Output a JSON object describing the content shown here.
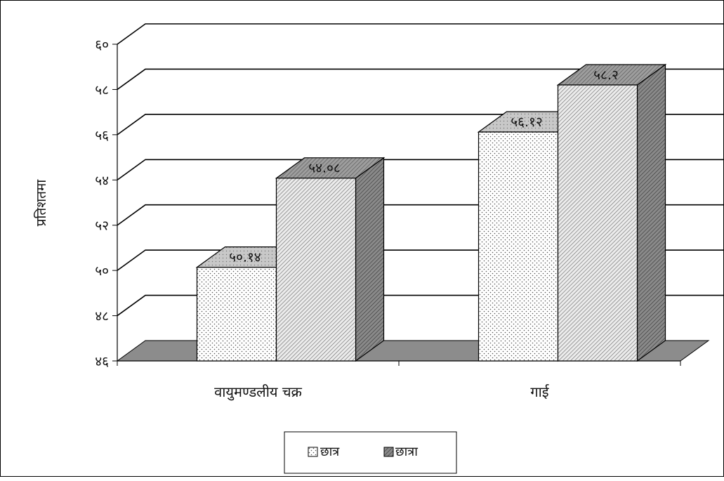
{
  "chart_data": {
    "type": "bar",
    "style": "3d-clustered-column",
    "title": "",
    "xlabel": "",
    "ylabel": "प्रतिशतमा",
    "ylim": [
      46,
      60
    ],
    "yticks": [
      46,
      48,
      50,
      52,
      54,
      56,
      58,
      60
    ],
    "ytick_labels": [
      "४६",
      "४८",
      "५०",
      "५२",
      "५४",
      "५६",
      "५८",
      "६०"
    ],
    "categories": [
      "वायुमण्डलीय चक्र",
      "गाई"
    ],
    "series": [
      {
        "name": "छात्र",
        "values": [
          50.14,
          56.12
        ],
        "value_labels": [
          "५०.१४",
          "५६.१२"
        ],
        "pattern": "dots"
      },
      {
        "name": "छात्रा",
        "values": [
          54.08,
          58.2
        ],
        "value_labels": [
          "५४.०८",
          "५८.२"
        ],
        "pattern": "hatch"
      }
    ],
    "grid": true,
    "legend": "bottom"
  }
}
